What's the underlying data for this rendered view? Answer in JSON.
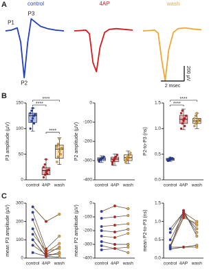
{
  "chart_data": [
    {
      "type": "waveform",
      "panel": "A",
      "x": [
        0,
        0.5,
        1.0,
        1.3,
        1.6,
        1.9,
        2.2,
        2.6,
        3.0,
        3.6,
        4.3,
        5.0
      ],
      "series": [
        {
          "name": "control",
          "color": "#1f3fbf",
          "values": [
            0,
            10,
            40,
            -150,
            -620,
            -150,
            160,
            110,
            60,
            30,
            10,
            0
          ]
        },
        {
          "name": "4AP",
          "color": "#d7191c",
          "values": [
            0,
            5,
            10,
            -40,
            -420,
            -540,
            -220,
            -20,
            20,
            30,
            20,
            10
          ]
        },
        {
          "name": "wash",
          "color": "#f0a830",
          "values": [
            0,
            5,
            10,
            -30,
            -380,
            -660,
            -250,
            -20,
            30,
            40,
            25,
            15
          ]
        }
      ],
      "annotations": [
        "P1",
        "P2",
        "P3"
      ],
      "scalebar": {
        "y": 200,
        "y_label": "200 µV",
        "x": 2,
        "x_label": "2 msec"
      }
    },
    {
      "type": "box",
      "panel": "B",
      "ylabel": "P3 amplitude (µV)",
      "categories": [
        "control",
        "4AP",
        "wash"
      ],
      "colors": [
        "#1f3fbf",
        "#d7191c",
        "#f0a830"
      ],
      "ylim": [
        0,
        150
      ],
      "yticks": [
        0,
        50,
        100,
        150
      ],
      "boxes": [
        {
          "min": 95,
          "q1": 112,
          "median": 125,
          "q3": 130,
          "max": 140
        },
        {
          "min": 0,
          "q1": 10,
          "median": 18,
          "q3": 24,
          "max": 40
        },
        {
          "min": 30,
          "q1": 42,
          "median": 60,
          "q3": 68,
          "max": 82
        }
      ],
      "points": [
        [
          100,
          115,
          120,
          125,
          128,
          130,
          135,
          140,
          110
        ],
        [
          5,
          10,
          15,
          18,
          20,
          25,
          30,
          40,
          12
        ],
        [
          35,
          45,
          55,
          60,
          62,
          65,
          70,
          80,
          50
        ]
      ],
      "significance": [
        {
          "between": [
            0,
            1
          ],
          "label": "****"
        },
        {
          "between": [
            0,
            2
          ],
          "label": "****"
        },
        {
          "between": [
            1,
            2
          ],
          "label": "****"
        }
      ]
    },
    {
      "type": "box",
      "ylabel": "P2 amplitude (µV)",
      "categories": [
        "control",
        "4AP",
        "wash"
      ],
      "colors": [
        "#1f3fbf",
        "#d7191c",
        "#f0a830"
      ],
      "ylim": [
        -400,
        0
      ],
      "yticks": [
        -400,
        -300,
        -200,
        -100,
        0
      ],
      "boxes": [
        {
          "min": -310,
          "q1": -300,
          "median": -292,
          "q3": -285,
          "max": -275
        },
        {
          "min": -325,
          "q1": -305,
          "median": -292,
          "q3": -282,
          "max": -265
        },
        {
          "min": -315,
          "q1": -300,
          "median": -285,
          "q3": -270,
          "max": -250
        }
      ],
      "points": [
        [
          -300,
          -295,
          -290,
          -285,
          -280,
          -305,
          -292,
          -288
        ],
        [
          -310,
          -300,
          -290,
          -280,
          -270,
          -320,
          -295,
          -285
        ],
        [
          -310,
          -295,
          -280,
          -270,
          -260,
          -300,
          -285,
          -290
        ]
      ]
    },
    {
      "type": "box",
      "ylabel": "P2-to-P3 (ns)",
      "categories": [
        "control",
        "4AP",
        "wash"
      ],
      "colors": [
        "#1f3fbf",
        "#d7191c",
        "#f0a830"
      ],
      "ylim": [
        0,
        1.5
      ],
      "yticks": [
        {
          "value": 0,
          "label": "0.0"
        },
        {
          "value": 0.5,
          "label": "0.5"
        },
        {
          "value": 1,
          "label": "1.0"
        },
        {
          "value": 1.5,
          "label": "1.5"
        }
      ],
      "boxes": [
        {
          "min": 0.36,
          "q1": 0.38,
          "median": 0.4,
          "q3": 0.42,
          "max": 0.44
        },
        {
          "min": 0.98,
          "q1": 1.1,
          "median": 1.18,
          "q3": 1.26,
          "max": 1.38
        },
        {
          "min": 1.0,
          "q1": 1.1,
          "median": 1.15,
          "q3": 1.2,
          "max": 1.3
        }
      ],
      "points": [
        [
          0.37,
          0.38,
          0.4,
          0.41,
          0.42,
          0.39,
          0.4,
          0.43
        ],
        [
          1.0,
          1.1,
          1.15,
          1.2,
          1.25,
          1.3,
          1.35,
          1.18,
          1.05
        ],
        [
          1.05,
          1.1,
          1.12,
          1.15,
          1.18,
          1.2,
          1.25,
          1.3
        ]
      ],
      "significance": [
        {
          "between": [
            0,
            1
          ],
          "label": "****"
        },
        {
          "between": [
            0,
            2
          ],
          "label": "****"
        }
      ]
    },
    {
      "type": "line",
      "panel": "C",
      "ylabel": "mean P3 amplitude (µV)",
      "categories": [
        "control",
        "4AP",
        "wash"
      ],
      "colors": [
        "#1f3fbf",
        "#d7191c",
        "#f0a830"
      ],
      "ylim": [
        0,
        300
      ],
      "yticks": [
        0,
        100,
        200,
        300
      ],
      "series": [
        {
          "color": "#6b4a2a",
          "values": [
            280,
            200,
            240
          ]
        },
        {
          "color": "#555555",
          "values": [
            250,
            50,
            120
          ]
        },
        {
          "color": "#7a5230",
          "values": [
            210,
            30,
            80
          ]
        },
        {
          "color": "#444444",
          "values": [
            160,
            20,
            60
          ]
        },
        {
          "color": "#8a6a40",
          "values": [
            130,
            40,
            50
          ]
        },
        {
          "color": "#333333",
          "values": [
            100,
            10,
            30
          ]
        },
        {
          "color": "#6b4a2a",
          "values": [
            70,
            20,
            20
          ]
        },
        {
          "color": "#555555",
          "values": [
            30,
            10,
            5
          ]
        }
      ]
    },
    {
      "type": "line",
      "ylabel": "mean P2 amplitude (µV)",
      "categories": [
        "control",
        "4AP",
        "wash"
      ],
      "colors": [
        "#1f3fbf",
        "#d7191c",
        "#f0a830"
      ],
      "ylim": [
        -400,
        0
      ],
      "yticks": [
        -400,
        -300,
        -200,
        -100,
        0
      ],
      "series": [
        {
          "color": "#6b4a2a",
          "values": [
            -60,
            -20,
            -40
          ]
        },
        {
          "color": "#555555",
          "values": [
            -110,
            -100,
            -90
          ]
        },
        {
          "color": "#7a5230",
          "values": [
            -170,
            -160,
            -150
          ]
        },
        {
          "color": "#444444",
          "values": [
            -200,
            -210,
            -190
          ]
        },
        {
          "color": "#8a6a40",
          "values": [
            -240,
            -250,
            -220
          ]
        },
        {
          "color": "#333333",
          "values": [
            -280,
            -300,
            -300
          ]
        },
        {
          "color": "#6b4a2a",
          "values": [
            -310,
            -330,
            -320
          ]
        },
        {
          "color": "#555555",
          "values": [
            -340,
            -330,
            -360
          ]
        }
      ]
    },
    {
      "type": "line",
      "ylabel": "mean P2-to-P3 (ns)",
      "categories": [
        "control",
        "4AP",
        "wash"
      ],
      "colors": [
        "#1f3fbf",
        "#d7191c",
        "#f0a830"
      ],
      "ylim": [
        0,
        1.5
      ],
      "yticks": [
        {
          "value": 0,
          "label": "0.0"
        },
        {
          "value": 0.5,
          "label": "0.5"
        },
        {
          "value": 1,
          "label": "1.0"
        },
        {
          "value": 1.5,
          "label": "1.5"
        }
      ],
      "series": [
        {
          "color": "#6b4a2a",
          "values": [
            0.7,
            1.25,
            1.0
          ]
        },
        {
          "color": "#555555",
          "values": [
            0.5,
            1.2,
            0.8
          ]
        },
        {
          "color": "#7a5230",
          "values": [
            0.35,
            1.15,
            0.9
          ]
        },
        {
          "color": "#444444",
          "values": [
            0.3,
            1.3,
            0.6
          ]
        },
        {
          "color": "#8a6a40",
          "values": [
            0.3,
            1.1,
            0.95
          ]
        },
        {
          "color": "#333333",
          "values": [
            0.25,
            0.3,
            0.35
          ]
        },
        {
          "color": "#6b4a2a",
          "values": [
            0.3,
            0.3,
            0.3
          ]
        },
        {
          "color": "#555555",
          "values": [
            0.8,
            1.25,
            0.7
          ]
        }
      ]
    }
  ]
}
